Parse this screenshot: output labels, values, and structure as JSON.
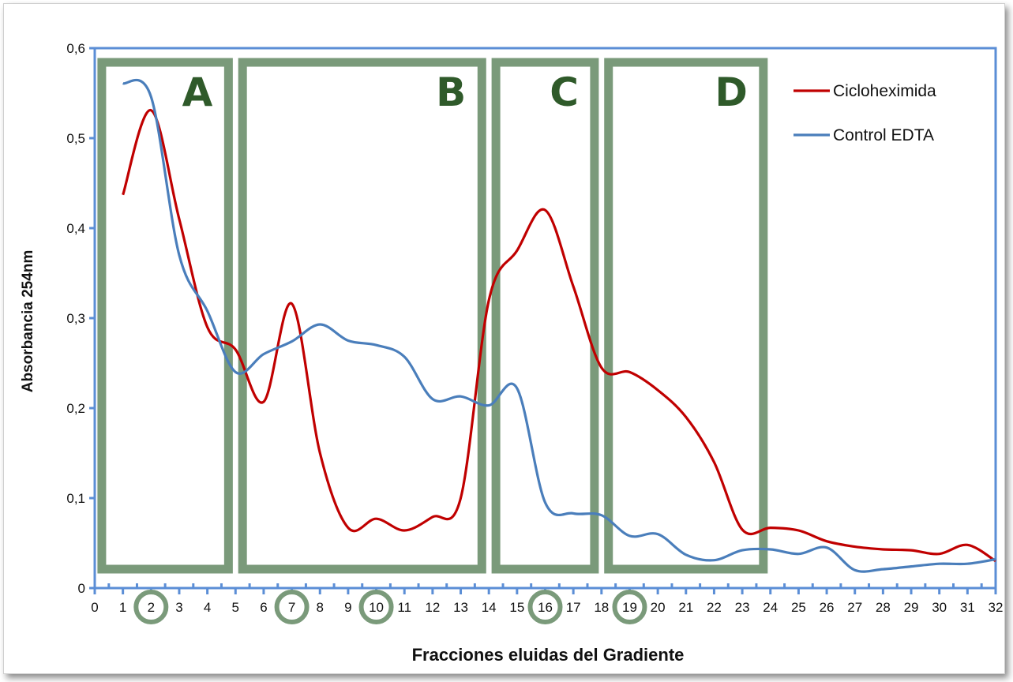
{
  "chart_data": {
    "type": "line",
    "xlabel": "Fracciones eluidas del Gradiente",
    "ylabel": "Absorbancia 254nm",
    "xlim": [
      0,
      32
    ],
    "ylim": [
      0,
      0.6
    ],
    "x_ticks": [
      "0",
      "1",
      "2",
      "3",
      "4",
      "5",
      "6",
      "7",
      "8",
      "9",
      "10",
      "11",
      "12",
      "13",
      "14",
      "15",
      "16",
      "17",
      "18",
      "19",
      "20",
      "21",
      "22",
      "23",
      "24",
      "25",
      "26",
      "27",
      "28",
      "29",
      "30",
      "31",
      "32"
    ],
    "y_ticks": [
      "0",
      "0,1",
      "0,2",
      "0,3",
      "0,4",
      "0,5",
      "0,6"
    ],
    "grid": false,
    "legend_position": "top-right",
    "series": [
      {
        "name": "Cicloheximida",
        "color": "#c00000",
        "x": [
          1,
          2,
          3,
          4,
          5,
          6,
          7,
          8,
          9,
          10,
          11,
          12,
          13,
          14,
          15,
          16,
          17,
          18,
          19,
          20,
          21,
          22,
          23,
          24,
          25,
          26,
          27,
          28,
          29,
          30,
          31,
          32
        ],
        "y": [
          0.437,
          0.531,
          0.41,
          0.29,
          0.265,
          0.207,
          0.316,
          0.15,
          0.067,
          0.077,
          0.064,
          0.079,
          0.1,
          0.32,
          0.375,
          0.42,
          0.335,
          0.245,
          0.24,
          0.22,
          0.19,
          0.14,
          0.065,
          0.067,
          0.064,
          0.052,
          0.046,
          0.043,
          0.042,
          0.038,
          0.048,
          0.03
        ]
      },
      {
        "name": "Control EDTA",
        "color": "#4a7ebb",
        "x": [
          1,
          2,
          3,
          4,
          5,
          6,
          7,
          8,
          9,
          10,
          11,
          12,
          13,
          14,
          15,
          16,
          17,
          18,
          19,
          20,
          21,
          22,
          23,
          24,
          25,
          26,
          27,
          28,
          29,
          30,
          31,
          32
        ],
        "y": [
          0.561,
          0.546,
          0.37,
          0.308,
          0.24,
          0.26,
          0.274,
          0.293,
          0.275,
          0.27,
          0.257,
          0.21,
          0.213,
          0.203,
          0.222,
          0.095,
          0.083,
          0.081,
          0.058,
          0.06,
          0.037,
          0.031,
          0.042,
          0.043,
          0.038,
          0.045,
          0.02,
          0.021,
          0.024,
          0.027,
          0.027,
          0.032
        ]
      }
    ],
    "regions": [
      {
        "label": "A",
        "x_start": 0.25,
        "x_end": 4.75
      },
      {
        "label": "B",
        "x_start": 5.25,
        "x_end": 13.75
      },
      {
        "label": "C",
        "x_start": 14.25,
        "x_end": 17.75
      },
      {
        "label": "D",
        "x_start": 18.25,
        "x_end": 23.75
      }
    ],
    "highlighted_fractions": [
      "2",
      "7",
      "10",
      "16",
      "19"
    ],
    "region_color": "#7a9a7a",
    "axis_color": "#5b8ed6"
  }
}
